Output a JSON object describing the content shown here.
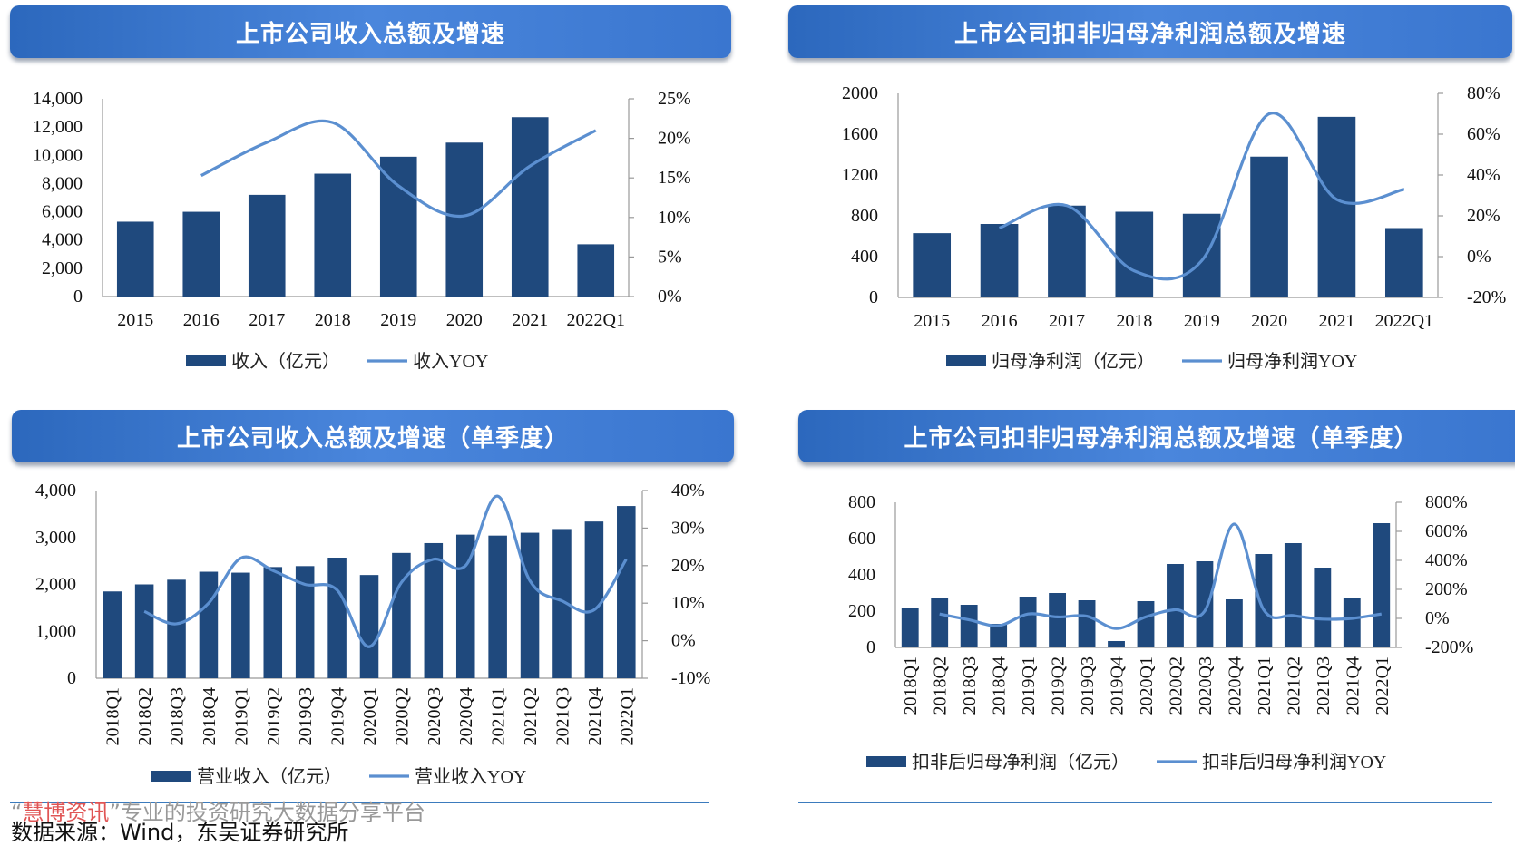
{
  "panels": [
    {
      "title": "上市公司收入总额及增速"
    },
    {
      "title": "上市公司扣非归母净利润总额及增速"
    },
    {
      "title": "上市公司收入总额及增速（单季度）"
    },
    {
      "title": "上市公司扣非归母净利润总额及增速（单季度）"
    }
  ],
  "footer": {
    "watermark_open": "“",
    "watermark_brand": "慧博资讯",
    "watermark_rest": "”专业的投资研究大数据分享平台",
    "source": "数据来源：Wind，东吴证券研究所"
  },
  "colors": {
    "bar": "#1f497d",
    "line": "#5b8fd0",
    "title_bar": "#3a78d2"
  },
  "chart_data": [
    {
      "type": "bar+line",
      "categories": [
        "2015",
        "2016",
        "2017",
        "2018",
        "2019",
        "2020",
        "2021",
        "2022Q1"
      ],
      "series": [
        {
          "name": "收入（亿元）",
          "type": "bar",
          "axis": "left",
          "values": [
            5300,
            6000,
            7200,
            8700,
            9900,
            10900,
            12700,
            3700
          ]
        },
        {
          "name": "收入YOY",
          "type": "line",
          "axis": "right",
          "values": [
            null,
            15.3,
            19.5,
            22.0,
            14.0,
            10.2,
            16.5,
            21.0
          ]
        }
      ],
      "ylim": [
        0,
        14000
      ],
      "yticks": [
        "0",
        "2,000",
        "4,000",
        "6,000",
        "8,000",
        "10,000",
        "12,000",
        "14,000"
      ],
      "y2lim": [
        0,
        25
      ],
      "y2ticks": [
        "0%",
        "5%",
        "10%",
        "15%",
        "20%",
        "25%"
      ],
      "grid": false,
      "legend": "bottom"
    },
    {
      "type": "bar+line",
      "categories": [
        "2015",
        "2016",
        "2017",
        "2018",
        "2019",
        "2020",
        "2021",
        "2022Q1"
      ],
      "series": [
        {
          "name": "归母净利润（亿元）",
          "type": "bar",
          "axis": "left",
          "values": [
            630,
            720,
            900,
            840,
            820,
            1380,
            1770,
            680
          ]
        },
        {
          "name": "归母净利润YOY",
          "type": "line",
          "axis": "right",
          "values": [
            null,
            14,
            25,
            -7,
            -2,
            70,
            28,
            33
          ]
        }
      ],
      "ylim": [
        0,
        2000
      ],
      "yticks": [
        "0",
        "400",
        "800",
        "1200",
        "1600",
        "2000"
      ],
      "y2lim": [
        -20,
        80
      ],
      "y2ticks": [
        "-20%",
        "0%",
        "20%",
        "40%",
        "60%",
        "80%"
      ],
      "grid": false,
      "legend": "bottom"
    },
    {
      "type": "bar+line",
      "categories": [
        "2018Q1",
        "2018Q2",
        "2018Q3",
        "2018Q4",
        "2019Q1",
        "2019Q2",
        "2019Q3",
        "2019Q4",
        "2020Q1",
        "2020Q2",
        "2020Q3",
        "2020Q4",
        "2021Q1",
        "2021Q2",
        "2021Q3",
        "2021Q4",
        "2022Q1"
      ],
      "series": [
        {
          "name": "营业收入（亿元）",
          "type": "bar",
          "axis": "left",
          "values": [
            1850,
            2000,
            2100,
            2270,
            2250,
            2370,
            2390,
            2570,
            2200,
            2670,
            2880,
            3060,
            3040,
            3100,
            3180,
            3340,
            3670
          ]
        },
        {
          "name": "营业收入YOY",
          "type": "line",
          "axis": "right",
          "values": [
            null,
            7.8,
            4.5,
            10,
            22,
            18.7,
            15,
            13.5,
            -1.6,
            15.5,
            21.7,
            20,
            38.5,
            16,
            10.6,
            8.2,
            21.7
          ]
        }
      ],
      "ylim": [
        0,
        4000
      ],
      "yticks": [
        "0",
        "1,000",
        "2,000",
        "3,000",
        "4,000"
      ],
      "y2lim": [
        -10,
        40
      ],
      "y2ticks": [
        "-10%",
        "0%",
        "10%",
        "20%",
        "30%",
        "40%"
      ],
      "grid": false,
      "legend": "bottom"
    },
    {
      "type": "bar+line",
      "categories": [
        "2018Q1",
        "2018Q2",
        "2018Q3",
        "2018Q4",
        "2019Q1",
        "2019Q2",
        "2019Q3",
        "2019Q4",
        "2020Q1",
        "2020Q2",
        "2020Q3",
        "2020Q4",
        "2021Q1",
        "2021Q2",
        "2021Q3",
        "2021Q4",
        "2022Q1"
      ],
      "series": [
        {
          "name": "扣非后归母净利润（亿元）",
          "type": "bar",
          "axis": "left",
          "values": [
            215,
            275,
            235,
            130,
            280,
            300,
            260,
            35,
            255,
            460,
            475,
            265,
            515,
            575,
            440,
            275,
            685
          ]
        },
        {
          "name": "扣非后归母净利润YOY",
          "type": "line",
          "axis": "right",
          "values": [
            null,
            30,
            -10,
            -50,
            30,
            10,
            15,
            -70,
            10,
            60,
            50,
            650,
            60,
            20,
            -5,
            0,
            30
          ]
        }
      ],
      "ylim": [
        0,
        800
      ],
      "yticks": [
        "0",
        "200",
        "400",
        "600",
        "800"
      ],
      "y2lim": [
        -200,
        800
      ],
      "y2ticks": [
        "-200%",
        "0%",
        "200%",
        "400%",
        "600%",
        "800%"
      ],
      "grid": false,
      "legend": "bottom"
    }
  ]
}
